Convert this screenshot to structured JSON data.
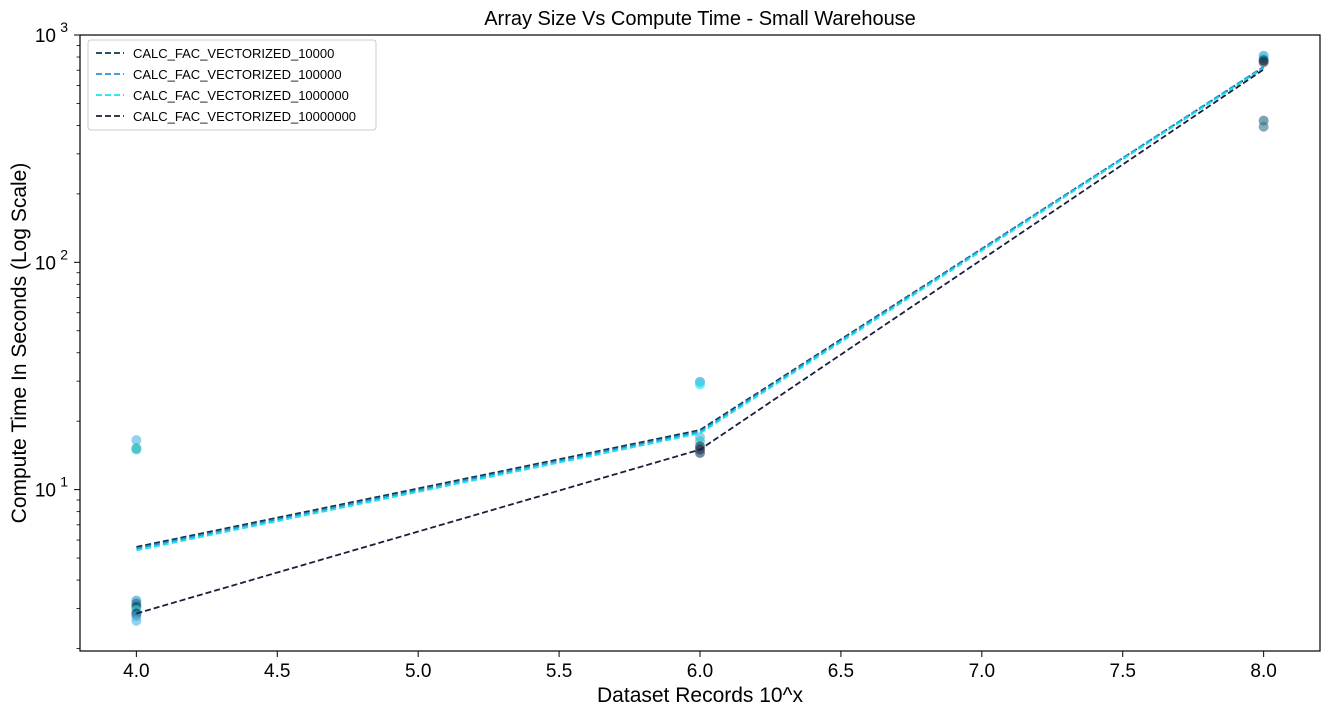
{
  "chart_data": {
    "type": "line",
    "title": "Array Size Vs Compute Time - Small Warehouse",
    "xlabel": "Dataset Records 10^x",
    "ylabel": "Compute Time In Seconds (Log Scale)",
    "xlim": [
      3.8,
      8.2
    ],
    "ylim": [
      1.95,
      1000
    ],
    "yscale": "log",
    "x_ticks": [
      4.0,
      4.5,
      5.0,
      5.5,
      6.0,
      6.5,
      7.0,
      7.5,
      8.0
    ],
    "x_tick_labels": [
      "4.0",
      "4.5",
      "5.0",
      "5.5",
      "6.0",
      "6.5",
      "7.0",
      "7.5",
      "8.0"
    ],
    "y_ticks": [
      {
        "value": 10,
        "base": "10",
        "exp": "1"
      },
      {
        "value": 100,
        "base": "10",
        "exp": "2"
      },
      {
        "value": 1000,
        "base": "10",
        "exp": "3"
      }
    ],
    "legend_position": "top-left",
    "grid": false,
    "series": [
      {
        "name": "CALC_FAC_VECTORIZED_10000",
        "color": "#0b3a4e",
        "x": [
          4,
          6,
          8
        ],
        "y": [
          5.6,
          18.3,
          720
        ]
      },
      {
        "name": "CALC_FAC_VECTORIZED_100000",
        "color": "#2a93d5",
        "x": [
          4,
          6,
          8
        ],
        "y": [
          5.5,
          18.0,
          725
        ]
      },
      {
        "name": "CALC_FAC_VECTORIZED_1000000",
        "color": "#19e3ee",
        "x": [
          4,
          6,
          8
        ],
        "y": [
          5.4,
          17.7,
          715
        ]
      },
      {
        "name": "CALC_FAC_VECTORIZED_10000000",
        "color": "#1b1f3b",
        "x": [
          4,
          6,
          8
        ],
        "y": [
          2.85,
          15.0,
          705
        ]
      }
    ],
    "scatter_points": [
      {
        "x": 4,
        "y": 16.5,
        "color": "#4fb3e0"
      },
      {
        "x": 4,
        "y": 15.2,
        "color": "#1aa6a6"
      },
      {
        "x": 4,
        "y": 15.0,
        "color": "#2fc2c8"
      },
      {
        "x": 4,
        "y": 3.25,
        "color": "#2a93d5"
      },
      {
        "x": 4,
        "y": 3.15,
        "color": "#1b6a80"
      },
      {
        "x": 4,
        "y": 3.05,
        "color": "#0b3a4e"
      },
      {
        "x": 4,
        "y": 2.95,
        "color": "#19e3ee"
      },
      {
        "x": 4,
        "y": 2.85,
        "color": "#1b1f3b"
      },
      {
        "x": 4,
        "y": 2.78,
        "color": "#2a93d5"
      },
      {
        "x": 4,
        "y": 2.65,
        "color": "#4fb3e0"
      },
      {
        "x": 6,
        "y": 29.8,
        "color": "#2a93d5"
      },
      {
        "x": 6,
        "y": 29.0,
        "color": "#19e3ee"
      },
      {
        "x": 6,
        "y": 17.0,
        "color": "#4fb3e0"
      },
      {
        "x": 6,
        "y": 16.3,
        "color": "#2fc2c8"
      },
      {
        "x": 6,
        "y": 15.5,
        "color": "#0b3a4e"
      },
      {
        "x": 6,
        "y": 15.0,
        "color": "#1b1f3b"
      },
      {
        "x": 6,
        "y": 14.5,
        "color": "#1b3a5e"
      },
      {
        "x": 8,
        "y": 810,
        "color": "#2a93d5"
      },
      {
        "x": 8,
        "y": 790,
        "color": "#19e3ee"
      },
      {
        "x": 8,
        "y": 775,
        "color": "#0b3a4e"
      },
      {
        "x": 8,
        "y": 760,
        "color": "#1b1f3b"
      },
      {
        "x": 8,
        "y": 420,
        "color": "#1b6a80"
      },
      {
        "x": 8,
        "y": 395,
        "color": "#3a6f8a"
      }
    ]
  }
}
